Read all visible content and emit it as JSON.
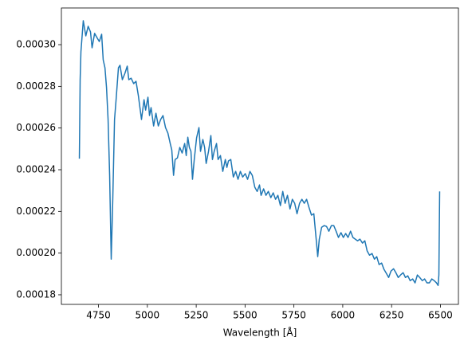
{
  "chart_data": {
    "type": "line",
    "xlabel": "Wavelength [Å]",
    "color": "#1f77b4",
    "x": [
      4652,
      4656,
      4660,
      4672,
      4685,
      4697,
      4709,
      4717,
      4730,
      4742,
      4754,
      4766,
      4774,
      4783,
      4791,
      4799,
      4807,
      4815,
      4823,
      4832,
      4840,
      4852,
      4860,
      4872,
      4885,
      4897,
      4905,
      4917,
      4930,
      4942,
      4954,
      4962,
      4970,
      4983,
      4991,
      5003,
      5011,
      5019,
      5032,
      5044,
      5056,
      5068,
      5080,
      5093,
      5105,
      5117,
      5125,
      5134,
      5142,
      5154,
      5166,
      5178,
      5191,
      5199,
      5207,
      5215,
      5223,
      5231,
      5240,
      5252,
      5264,
      5272,
      5284,
      5293,
      5301,
      5313,
      5325,
      5333,
      5342,
      5354,
      5362,
      5374,
      5386,
      5399,
      5407,
      5415,
      5427,
      5440,
      5452,
      5464,
      5476,
      5488,
      5501,
      5513,
      5525,
      5537,
      5550,
      5562,
      5574,
      5582,
      5595,
      5607,
      5619,
      5632,
      5644,
      5656,
      5668,
      5681,
      5693,
      5705,
      5717,
      5730,
      5742,
      5754,
      5766,
      5779,
      5791,
      5803,
      5815,
      5827,
      5840,
      5852,
      5864,
      5872,
      5880,
      5892,
      5905,
      5917,
      5929,
      5942,
      5954,
      5966,
      5978,
      5991,
      6003,
      6015,
      6027,
      6040,
      6052,
      6064,
      6076,
      6088,
      6101,
      6113,
      6125,
      6137,
      6150,
      6162,
      6174,
      6186,
      6199,
      6211,
      6223,
      6235,
      6247,
      6260,
      6272,
      6284,
      6296,
      6309,
      6321,
      6333,
      6345,
      6358,
      6370,
      6382,
      6394,
      6407,
      6419,
      6431,
      6443,
      6456,
      6468,
      6480,
      6488,
      6492,
      6496
    ],
    "values": [
      0.0002453,
      0.0002832,
      0.0002966,
      0.0003115,
      0.0003042,
      0.0003088,
      0.0003061,
      0.0002985,
      0.0003054,
      0.0003034,
      0.0003015,
      0.000305,
      0.0002927,
      0.0002889,
      0.0002794,
      0.0002641,
      0.0002373,
      0.0001971,
      0.0002258,
      0.0002641,
      0.0002736,
      0.0002889,
      0.0002901,
      0.0002832,
      0.0002862,
      0.0002897,
      0.0002832,
      0.0002839,
      0.0002813,
      0.0002824,
      0.0002755,
      0.0002698,
      0.0002641,
      0.0002736,
      0.0002686,
      0.0002748,
      0.000266,
      0.0002698,
      0.000261,
      0.0002671,
      0.000261,
      0.0002641,
      0.000266,
      0.0002602,
      0.0002576,
      0.0002526,
      0.0002495,
      0.0002373,
      0.0002449,
      0.0002457,
      0.0002507,
      0.000248,
      0.0002526,
      0.0002468,
      0.0002556,
      0.0002507,
      0.0002488,
      0.0002354,
      0.0002449,
      0.0002553,
      0.0002602,
      0.0002488,
      0.0002545,
      0.0002507,
      0.000243,
      0.0002488,
      0.0002564,
      0.0002449,
      0.0002488,
      0.0002526,
      0.0002449,
      0.0002468,
      0.0002392,
      0.0002449,
      0.0002411,
      0.0002442,
      0.0002449,
      0.0002365,
      0.0002392,
      0.0002354,
      0.0002392,
      0.0002365,
      0.0002381,
      0.0002354,
      0.0002392,
      0.0002373,
      0.0002316,
      0.0002296,
      0.0002327,
      0.0002277,
      0.0002308,
      0.0002277,
      0.0002296,
      0.0002266,
      0.0002289,
      0.0002258,
      0.0002277,
      0.0002228,
      0.0002296,
      0.0002239,
      0.0002277,
      0.0002212,
      0.0002258,
      0.0002239,
      0.0002189,
      0.0002239,
      0.0002258,
      0.0002239,
      0.0002258,
      0.000222,
      0.0002182,
      0.0002189,
      0.0002067,
      0.0001983,
      0.0002067,
      0.0002124,
      0.0002132,
      0.0002128,
      0.0002105,
      0.0002132,
      0.0002132,
      0.0002105,
      0.0002075,
      0.0002098,
      0.0002075,
      0.0002094,
      0.0002075,
      0.0002105,
      0.0002075,
      0.0002067,
      0.0002059,
      0.0002067,
      0.0002048,
      0.0002059,
      0.000201,
      0.000199,
      0.0001998,
      0.0001971,
      0.0001983,
      0.0001945,
      0.0001952,
      0.0001922,
      0.0001903,
      0.0001883,
      0.0001914,
      0.0001925,
      0.0001906,
      0.0001883,
      0.0001895,
      0.0001906,
      0.0001883,
      0.0001891,
      0.0001868,
      0.0001876,
      0.0001857,
      0.0001895,
      0.0001883,
      0.0001868,
      0.0001876,
      0.0001857,
      0.0001857,
      0.0001876,
      0.0001868,
      0.0001857,
      0.0001845,
      0.0001895,
      0.0002296
    ],
    "xlim": [
      4560,
      6592
    ],
    "xticks": [
      4750,
      5000,
      5250,
      5500,
      5750,
      6000,
      6250,
      6500
    ],
    "ylim": [
      0.0001754,
      0.0003176
    ],
    "yticks": [
      {
        "value": 0.00018,
        "label": "0.00018"
      },
      {
        "value": 0.0002,
        "label": "0.00020"
      },
      {
        "value": 0.00022,
        "label": "0.00022"
      },
      {
        "value": 0.00024,
        "label": "0.00024"
      },
      {
        "value": 0.00026,
        "label": "0.00026"
      },
      {
        "value": 0.00028,
        "label": "0.00028"
      },
      {
        "value": 0.0003,
        "label": "0.00030"
      }
    ]
  }
}
